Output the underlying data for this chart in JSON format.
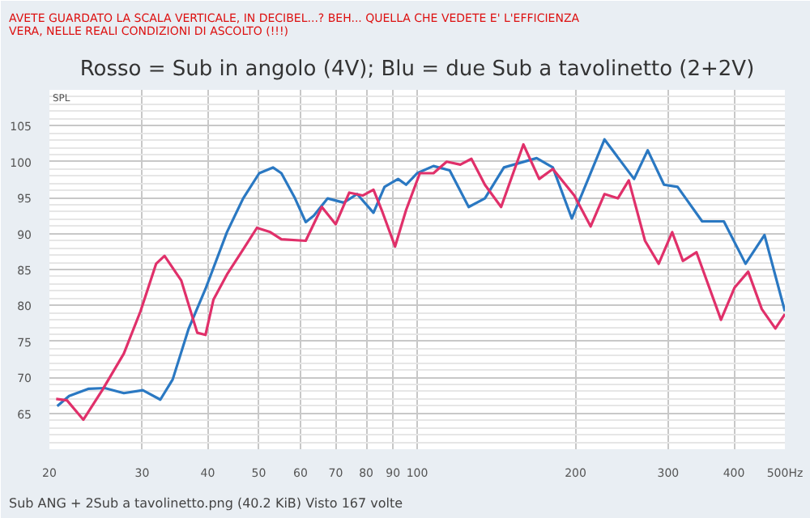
{
  "chart_data": {
    "type": "line",
    "title": "Rosso = Sub in angolo (4V); Blu = due Sub a tavolinetto (2+2V)",
    "ylabel": "SPL",
    "annotations": [
      "AVETE GUARDATO LA SCALA VERTICALE, IN DECIBEL...? BEH... QUELLA CHE VEDETE E' L'EFFICIENZA VERA, NELLE REALI CONDIZIONI DI ASCOLTO (!!!)",
      "Sub ANG + 2Sub a tavolinetto.png (40.2 KiB) Visto 167 volte"
    ],
    "log": "x",
    "grid": true,
    "marker": "none",
    "line_style": "solid",
    "xlim": [
      20,
      500
    ],
    "xticks": [
      20,
      30,
      40,
      50,
      60,
      70,
      80,
      90,
      100,
      200,
      300,
      400,
      {
        "value": 500,
        "label": "500Hz"
      }
    ],
    "ylim": [
      60,
      110
    ],
    "yticks": [
      65,
      70,
      75,
      80,
      85,
      90,
      95,
      100,
      105
    ],
    "series": [
      {
        "color": "#2a78c2",
        "x": [
          20.7,
          21.8,
          23.7,
          25.5,
          27.7,
          30.1,
          32.5,
          34.3,
          36.8,
          39.6,
          43.5,
          46.7,
          50.1,
          53.2,
          55.2,
          58.6,
          61.4,
          63.6,
          67.6,
          72.5,
          76.9,
          82.6,
          86.7,
          92,
          95.3,
          100,
          107.4,
          115.3,
          125.3,
          134.5,
          146.2,
          168.7,
          181.1,
          196.8,
          211.4,
          227,
          258.4,
          274.3,
          294.6,
          312.6,
          348.1,
          382.8,
          420.9,
          457.3,
          500
        ],
        "values": [
          66.0,
          67.4,
          68.4,
          68.5,
          67.8,
          68.2,
          66.9,
          69.7,
          76.8,
          82.3,
          90.2,
          94.9,
          98.4,
          99.2,
          98.4,
          94.9,
          91.6,
          92.5,
          94.9,
          94.3,
          95.5,
          92.9,
          96.5,
          97.6,
          96.8,
          98.4,
          99.4,
          98.8,
          93.7,
          94.9,
          99.2,
          100.5,
          99.2,
          92.1,
          97.6,
          103.1,
          97.6,
          101.6,
          96.8,
          96.5,
          91.7,
          91.7,
          85.8,
          89.8,
          79.2
        ]
      },
      {
        "color": "#e0306a",
        "x": [
          20.6,
          21.6,
          23.2,
          25.2,
          27.7,
          29.8,
          31.9,
          33.1,
          35.6,
          38.2,
          39.6,
          41,
          43.5,
          46.7,
          49.6,
          52.6,
          55.2,
          61.4,
          65.9,
          70,
          74.3,
          78.8,
          82.6,
          85.6,
          90.8,
          95.3,
          101.2,
          107.4,
          113.8,
          120.8,
          126.8,
          134.5,
          144.4,
          159.2,
          170.6,
          181.1,
          198.9,
          213.7,
          227,
          240.7,
          252.5,
          271.1,
          287.8,
          305.3,
          320,
          339.6,
          378,
          401.3,
          425.8,
          451.9,
          479.6,
          500
        ],
        "values": [
          67.0,
          66.8,
          64.1,
          68.2,
          73.3,
          79.2,
          85.8,
          86.9,
          83.5,
          76.2,
          75.9,
          80.8,
          84.3,
          87.8,
          90.8,
          90.2,
          89.2,
          89.0,
          93.7,
          91.3,
          95.7,
          95.3,
          96.1,
          93.3,
          88.2,
          93.3,
          98.4,
          98.4,
          100.0,
          99.6,
          100.4,
          96.8,
          93.7,
          102.4,
          97.6,
          99.0,
          95.3,
          91.0,
          95.5,
          94.9,
          97.4,
          89.0,
          85.8,
          90.2,
          86.2,
          87.4,
          78.0,
          82.5,
          84.7,
          79.5,
          76.8,
          78.8
        ]
      }
    ]
  }
}
